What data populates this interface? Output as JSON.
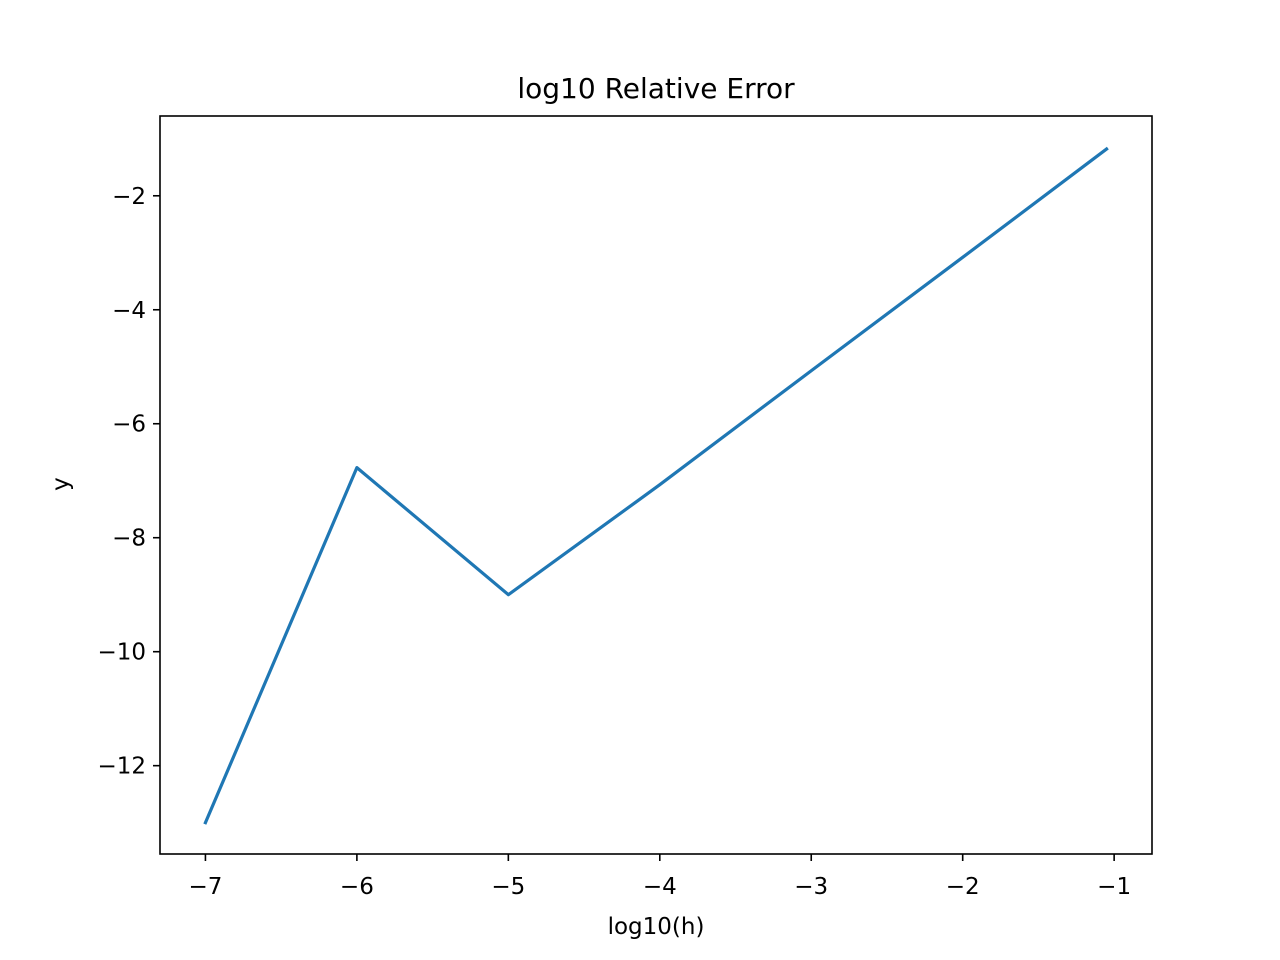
{
  "chart_data": {
    "type": "line",
    "title": "log10 Relative Error",
    "xlabel": "log10(h)",
    "ylabel": "y",
    "xlim": [
      -7.3,
      -0.75
    ],
    "ylim": [
      -13.55,
      -0.6
    ],
    "xticks": [
      -7,
      -6,
      -5,
      -4,
      -3,
      -2,
      -1
    ],
    "xtick_labels": [
      "−7",
      "−6",
      "−5",
      "−4",
      "−3",
      "−2",
      "−1"
    ],
    "yticks": [
      -2,
      -4,
      -6,
      -8,
      -10,
      -12
    ],
    "ytick_labels": [
      "−2",
      "−4",
      "−6",
      "−8",
      "−10",
      "−12"
    ],
    "grid": false,
    "series": [
      {
        "color": "#1f77b4",
        "x": [
          -7,
          -6,
          -5,
          -4,
          -3,
          -2,
          -1.05
        ],
        "y": [
          -13.0,
          -6.77,
          -9.0,
          -7.07,
          -5.07,
          -3.08,
          -1.18
        ]
      }
    ]
  }
}
